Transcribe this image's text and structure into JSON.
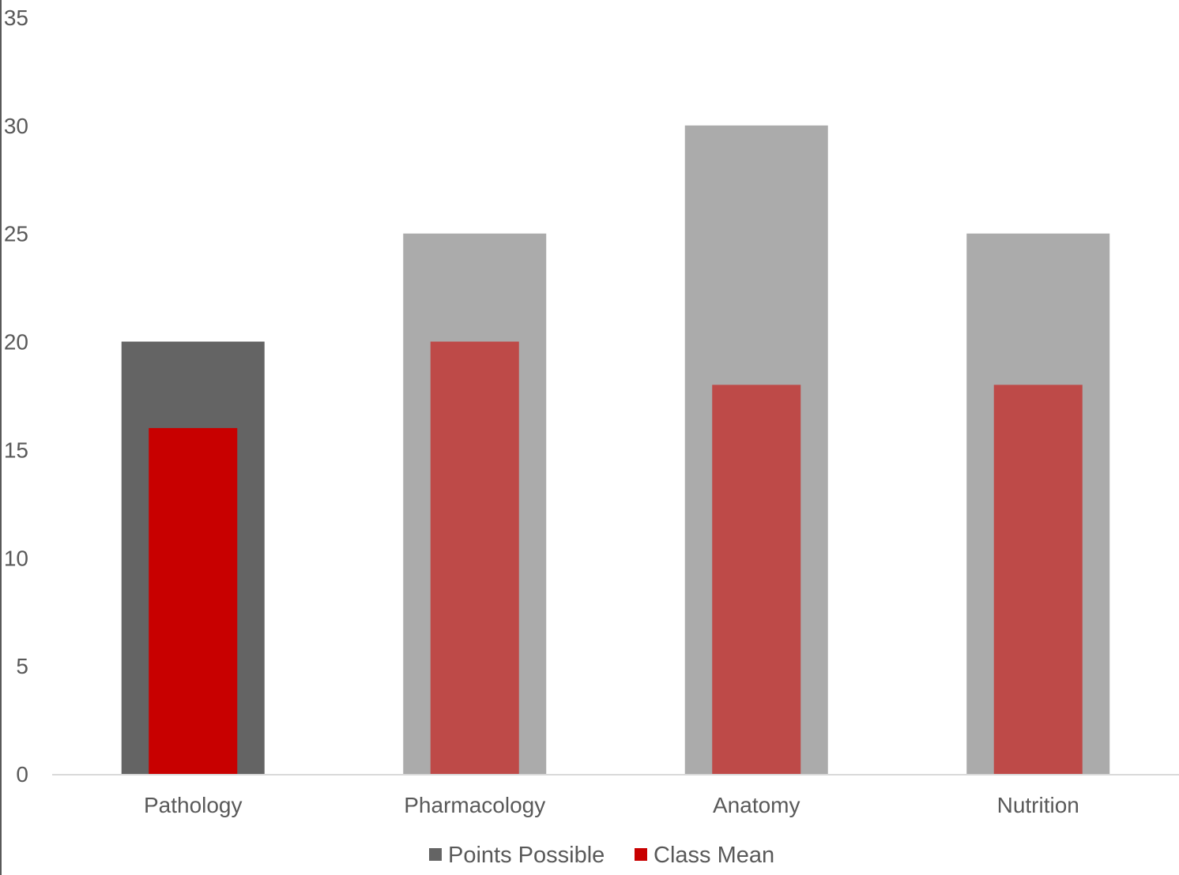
{
  "chart_data": {
    "type": "bar",
    "categories": [
      "Pathology",
      "Pharmacology",
      "Anatomy",
      "Nutrition"
    ],
    "series": [
      {
        "name": "Points Possible",
        "values": [
          20,
          25,
          30,
          25
        ],
        "color": "#ababab",
        "highlight_color": "#646464"
      },
      {
        "name": "Class Mean",
        "values": [
          16,
          20,
          18,
          18
        ],
        "color": "#be4a48",
        "highlight_color": "#c80000"
      }
    ],
    "highlighted_category": "Pathology",
    "ylim": [
      0,
      35
    ],
    "y_ticks": [
      0,
      5,
      10,
      15,
      20,
      25,
      30,
      35
    ],
    "grid": false,
    "legend_position": "bottom",
    "legend_colors": [
      "#646464",
      "#c80000"
    ],
    "axis_color": "#d9d9d9",
    "title": "",
    "xlabel": "",
    "ylabel": ""
  }
}
